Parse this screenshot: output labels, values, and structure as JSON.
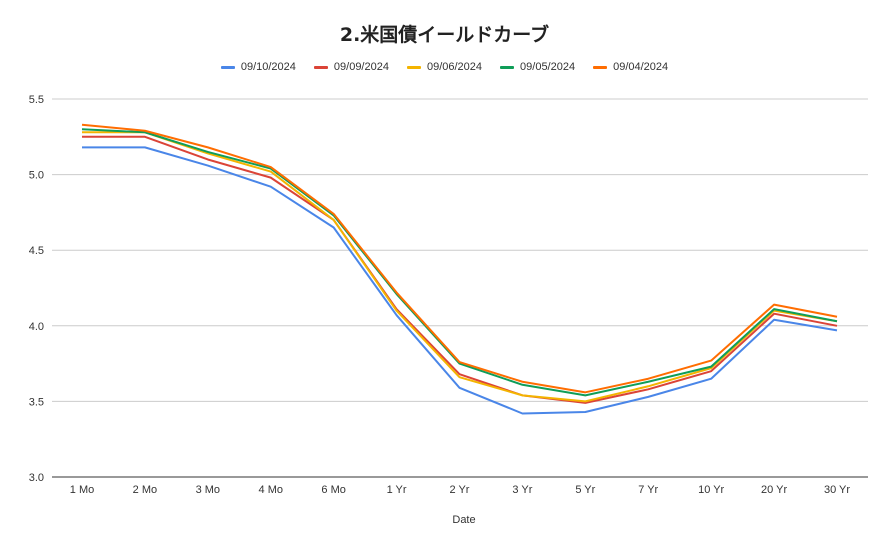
{
  "chart_data": {
    "type": "line",
    "title": "2.米国債イールドカーブ",
    "xlabel": "Date",
    "ylabel": "",
    "ylim": [
      3.0,
      5.5
    ],
    "yticks": [
      "3.0",
      "3.5",
      "4.0",
      "4.5",
      "5.0",
      "5.5"
    ],
    "grid": true,
    "legend_position": "top",
    "categories": [
      "1 Mo",
      "2 Mo",
      "3 Mo",
      "4 Mo",
      "6 Mo",
      "1 Yr",
      "2 Yr",
      "3 Yr",
      "5 Yr",
      "7 Yr",
      "10 Yr",
      "20 Yr",
      "30 Yr"
    ],
    "series": [
      {
        "name": "09/10/2024",
        "color": "#4a86e8",
        "values": [
          5.18,
          5.18,
          5.06,
          4.92,
          4.65,
          4.07,
          3.59,
          3.42,
          3.43,
          3.53,
          3.65,
          4.04,
          3.97
        ]
      },
      {
        "name": "09/09/2024",
        "color": "#db4437",
        "values": [
          5.25,
          5.25,
          5.1,
          4.98,
          4.7,
          4.11,
          3.68,
          3.54,
          3.49,
          3.58,
          3.7,
          4.08,
          4.0
        ]
      },
      {
        "name": "09/06/2024",
        "color": "#f4b400",
        "values": [
          5.28,
          5.28,
          5.14,
          5.02,
          4.7,
          4.1,
          3.66,
          3.54,
          3.5,
          3.6,
          3.72,
          4.1,
          4.03
        ]
      },
      {
        "name": "09/05/2024",
        "color": "#0f9d58",
        "values": [
          5.3,
          5.28,
          5.15,
          5.04,
          4.73,
          4.21,
          3.75,
          3.61,
          3.54,
          3.63,
          3.73,
          4.11,
          4.03
        ]
      },
      {
        "name": "09/04/2024",
        "color": "#ff6d01",
        "values": [
          5.33,
          5.29,
          5.18,
          5.05,
          4.74,
          4.22,
          3.76,
          3.63,
          3.56,
          3.65,
          3.77,
          4.14,
          4.06
        ]
      }
    ]
  }
}
